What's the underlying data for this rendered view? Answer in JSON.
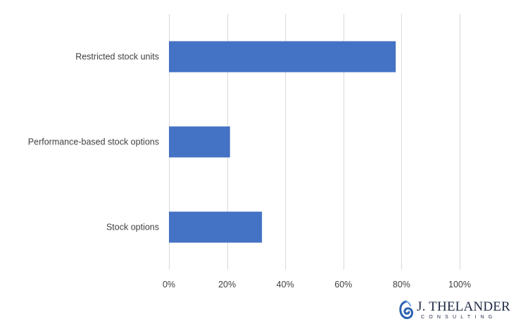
{
  "chart_data": {
    "type": "bar",
    "orientation": "horizontal",
    "categories": [
      "Restricted stock units",
      "Performance-based stock options",
      "Stock options"
    ],
    "values": [
      78,
      21,
      32
    ],
    "xlim": [
      0,
      100
    ],
    "xticks": [
      "0%",
      "20%",
      "40%",
      "60%",
      "80%",
      "100%"
    ],
    "grid": true,
    "bar_color": "#4472c4",
    "grid_color": "#d9d9d9"
  },
  "logo": {
    "name": "J. THELANDER",
    "sub": "CONSULTING"
  }
}
